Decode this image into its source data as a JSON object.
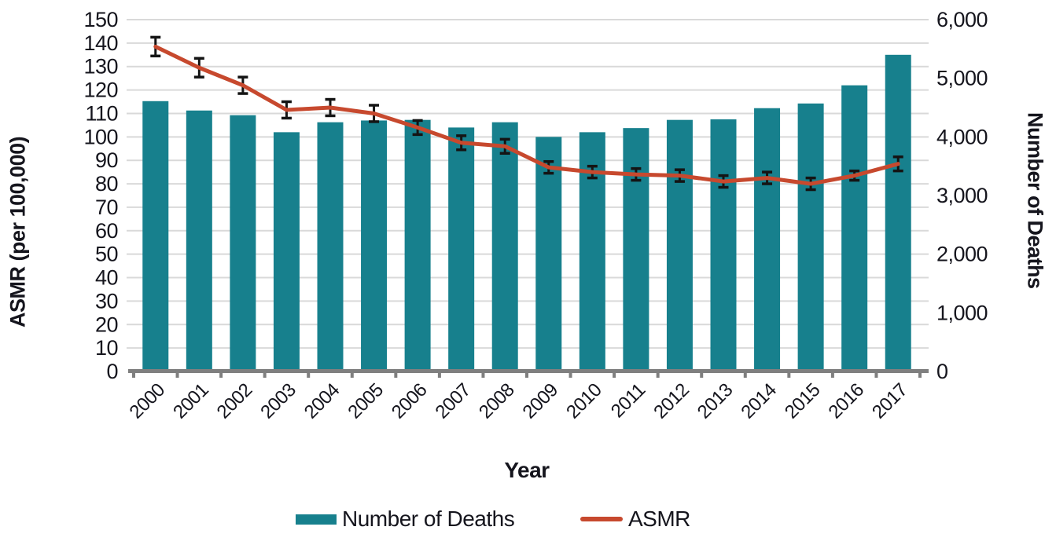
{
  "chart_data": {
    "type": "combo-bar-line",
    "title": "",
    "categories": [
      "2000",
      "2001",
      "2002",
      "2003",
      "2004",
      "2005",
      "2006",
      "2007",
      "2008",
      "2009",
      "2010",
      "2011",
      "2012",
      "2013",
      "2014",
      "2015",
      "2016",
      "2017"
    ],
    "series": [
      {
        "name": "Number of Deaths",
        "type": "bar",
        "axis": "right",
        "color": "#17808d",
        "values": [
          4610,
          4450,
          4370,
          4080,
          4250,
          4280,
          4290,
          4160,
          4250,
          4000,
          4080,
          4150,
          4290,
          4300,
          4490,
          4570,
          4880,
          5400
        ]
      },
      {
        "name": "ASMR",
        "type": "line",
        "axis": "left",
        "color": "#c7492e",
        "values": [
          138.5,
          129.5,
          122,
          111.5,
          112.5,
          110,
          104,
          97.5,
          96,
          87,
          85,
          84,
          83.5,
          81,
          82.5,
          80,
          83.5,
          88.5
        ],
        "error_margins": [
          4,
          4,
          3.5,
          3.5,
          3.5,
          3.5,
          3,
          3,
          3,
          2.5,
          2.5,
          2.5,
          2.5,
          2.5,
          2.5,
          2.5,
          2,
          3
        ]
      }
    ],
    "left_axis": {
      "title": "ASMR (per 100,000)",
      "min": 0,
      "max": 150,
      "step": 10,
      "tick_labels": [
        "0",
        "10",
        "20",
        "30",
        "40",
        "50",
        "60",
        "70",
        "80",
        "90",
        "100",
        "110",
        "120",
        "130",
        "140",
        "150"
      ]
    },
    "right_axis": {
      "title": "Number of Deaths",
      "min": 0,
      "max": 6000,
      "step": 1000,
      "tick_labels": [
        "0",
        "1,000",
        "2,000",
        "3,000",
        "4,000",
        "5,000",
        "6,000"
      ]
    },
    "x_axis": {
      "title": "Year"
    },
    "legend": {
      "position": "bottom",
      "items": [
        {
          "label": "Number of Deaths",
          "swatch": "bar",
          "color": "#17808d"
        },
        {
          "label": "ASMR",
          "swatch": "line",
          "color": "#c7492e"
        }
      ]
    },
    "grid": true,
    "colors": {
      "gridline": "#d9d9d9",
      "axis_line": "#7f7f7f",
      "error_bar": "#141414",
      "text": "#15151d"
    }
  }
}
